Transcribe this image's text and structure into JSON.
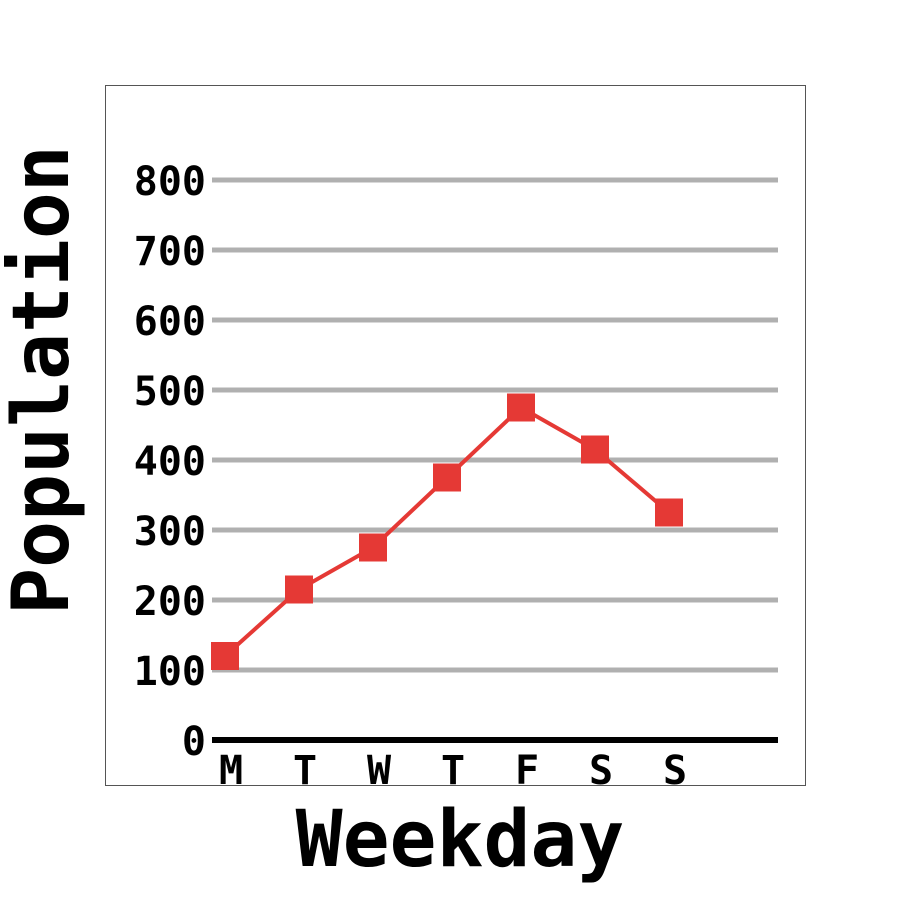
{
  "chart_data": {
    "type": "line",
    "xlabel": "Weekday",
    "ylabel": "Population",
    "categories": [
      "M",
      "T",
      "W",
      "T",
      "F",
      "S",
      "S"
    ],
    "y_ticks": [
      "0",
      "100",
      "200",
      "300",
      "400",
      "500",
      "600",
      "700",
      "800"
    ],
    "series": [
      {
        "values": [
          120,
          215,
          275,
          375,
          475,
          415,
          325
        ]
      }
    ],
    "ylim": [
      0,
      800
    ],
    "grid": true,
    "colors": {
      "line": "#e53935",
      "grid": "#b0b0b0",
      "axis": "#000000",
      "frame": "#555555"
    }
  }
}
